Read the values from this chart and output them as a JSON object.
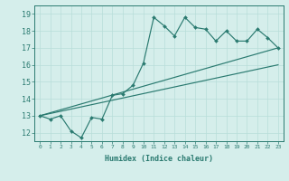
{
  "title": "",
  "xlabel": "Humidex (Indice chaleur)",
  "ylabel": "",
  "bg_color": "#d5eeeb",
  "grid_color": "#b8ddd9",
  "line_color": "#2a7a70",
  "x_ticks": [
    0,
    1,
    2,
    3,
    4,
    5,
    6,
    7,
    8,
    9,
    10,
    11,
    12,
    13,
    14,
    15,
    16,
    17,
    18,
    19,
    20,
    21,
    22,
    23
  ],
  "y_ticks": [
    12,
    13,
    14,
    15,
    16,
    17,
    18,
    19
  ],
  "xlim": [
    -0.5,
    23.5
  ],
  "ylim": [
    11.5,
    19.5
  ],
  "line1_x": [
    0,
    1,
    2,
    3,
    4,
    5,
    6,
    7,
    8,
    9,
    10,
    11,
    12,
    13,
    14,
    15,
    16,
    17,
    18,
    19,
    20,
    21,
    22,
    23
  ],
  "line1_y": [
    13.0,
    12.8,
    13.0,
    12.1,
    11.7,
    12.9,
    12.8,
    14.2,
    14.3,
    14.8,
    16.1,
    18.8,
    18.3,
    17.7,
    18.8,
    18.2,
    18.1,
    17.4,
    18.0,
    17.4,
    17.4,
    18.1,
    17.6,
    17.0
  ],
  "line2_x": [
    0,
    23
  ],
  "line2_y": [
    13.0,
    17.0
  ],
  "line3_x": [
    0,
    23
  ],
  "line3_y": [
    13.0,
    16.0
  ],
  "xlabel_fontsize": 6.0,
  "xtick_fontsize": 4.5,
  "ytick_fontsize": 6.0
}
